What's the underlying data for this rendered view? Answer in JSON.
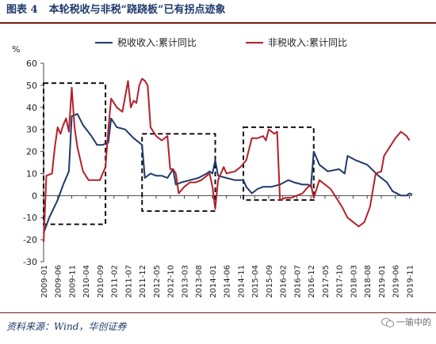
{
  "figure": {
    "label": "图表 4",
    "title": "本轮税收与非税“跷跷板”已有拐点迹象",
    "source": "资料来源：Wind，华创证券",
    "watermark": "一瑜中的"
  },
  "chart_data": {
    "type": "line",
    "ylabel": "%",
    "ylim": [
      -30,
      60
    ],
    "yticks": [
      -30,
      -20,
      -10,
      0,
      10,
      20,
      30,
      40,
      50,
      60
    ],
    "x_start": "2009-01",
    "x_end": "2019-12",
    "xticks": [
      "2009-01",
      "2009-06",
      "2009-11",
      "2010-04",
      "2010-09",
      "2011-02",
      "2011-07",
      "2011-12",
      "2012-05",
      "2012-10",
      "2013-03",
      "2013-08",
      "2014-01",
      "2014-06",
      "2014-11",
      "2015-04",
      "2015-09",
      "2016-02",
      "2016-07",
      "2016-12",
      "2017-05",
      "2017-10",
      "2018-03",
      "2018-08",
      "2019-01",
      "2019-06",
      "2019-11"
    ],
    "legend_position": "top",
    "grid": false,
    "series": [
      {
        "name": "税收收入:累计同比",
        "color": "#1f3a6b",
        "points": [
          [
            "2009-01",
            -17
          ],
          [
            "2009-03",
            -10
          ],
          [
            "2009-06",
            -2
          ],
          [
            "2009-08",
            5
          ],
          [
            "2009-10",
            11
          ],
          [
            "2009-11",
            36
          ],
          [
            "2010-01",
            37
          ],
          [
            "2010-03",
            32
          ],
          [
            "2010-06",
            27
          ],
          [
            "2010-08",
            23
          ],
          [
            "2010-10",
            23
          ],
          [
            "2010-12",
            24
          ],
          [
            "2011-01",
            35
          ],
          [
            "2011-03",
            31
          ],
          [
            "2011-06",
            30
          ],
          [
            "2011-09",
            26
          ],
          [
            "2011-12",
            23
          ],
          [
            "2012-01",
            8
          ],
          [
            "2012-03",
            10
          ],
          [
            "2012-05",
            9
          ],
          [
            "2012-07",
            9
          ],
          [
            "2012-09",
            8
          ],
          [
            "2012-11",
            12
          ],
          [
            "2012-12",
            5
          ],
          [
            "2013-02",
            6
          ],
          [
            "2013-05",
            7
          ],
          [
            "2013-08",
            8
          ],
          [
            "2013-11",
            10
          ],
          [
            "2013-12",
            11
          ],
          [
            "2014-01",
            10
          ],
          [
            "2014-02",
            16
          ],
          [
            "2014-03",
            9
          ],
          [
            "2014-06",
            8
          ],
          [
            "2014-09",
            7
          ],
          [
            "2014-12",
            7
          ],
          [
            "2015-01",
            4
          ],
          [
            "2015-03",
            1
          ],
          [
            "2015-05",
            3
          ],
          [
            "2015-07",
            4
          ],
          [
            "2015-10",
            4
          ],
          [
            "2016-01",
            5
          ],
          [
            "2016-04",
            7
          ],
          [
            "2016-06",
            6
          ],
          [
            "2016-09",
            5
          ],
          [
            "2016-11",
            5
          ],
          [
            "2016-12",
            4
          ],
          [
            "2017-01",
            20
          ],
          [
            "2017-03",
            14
          ],
          [
            "2017-06",
            11
          ],
          [
            "2017-10",
            12
          ],
          [
            "2017-12",
            10
          ],
          [
            "2018-01",
            18
          ],
          [
            "2018-04",
            16
          ],
          [
            "2018-08",
            14
          ],
          [
            "2018-12",
            9
          ],
          [
            "2019-03",
            6
          ],
          [
            "2019-05",
            2
          ],
          [
            "2019-08",
            0
          ],
          [
            "2019-10",
            0
          ],
          [
            "2019-11",
            1
          ],
          [
            "2019-12",
            0.5
          ]
        ]
      },
      {
        "name": "非税收入:累计同比",
        "color": "#b3202a",
        "points": [
          [
            "2009-01",
            -21
          ],
          [
            "2009-02",
            9
          ],
          [
            "2009-04",
            10
          ],
          [
            "2009-05",
            22
          ],
          [
            "2009-06",
            31
          ],
          [
            "2009-07",
            28
          ],
          [
            "2009-08",
            32
          ],
          [
            "2009-09",
            35
          ],
          [
            "2009-10",
            29
          ],
          [
            "2009-11",
            49
          ],
          [
            "2009-12",
            31
          ],
          [
            "2010-01",
            22
          ],
          [
            "2010-03",
            11
          ],
          [
            "2010-05",
            7
          ],
          [
            "2010-07",
            7
          ],
          [
            "2010-09",
            7
          ],
          [
            "2010-11",
            13
          ],
          [
            "2010-12",
            30
          ],
          [
            "2011-01",
            44
          ],
          [
            "2011-03",
            40
          ],
          [
            "2011-05",
            38
          ],
          [
            "2011-07",
            52
          ],
          [
            "2011-08",
            40
          ],
          [
            "2011-09",
            43
          ],
          [
            "2011-10",
            42
          ],
          [
            "2011-11",
            50
          ],
          [
            "2011-12",
            53
          ],
          [
            "2012-01",
            52
          ],
          [
            "2012-02",
            50
          ],
          [
            "2012-03",
            31
          ],
          [
            "2012-05",
            27
          ],
          [
            "2012-07",
            25
          ],
          [
            "2012-09",
            27
          ],
          [
            "2012-10",
            12
          ],
          [
            "2012-11",
            12
          ],
          [
            "2012-12",
            10
          ],
          [
            "2013-01",
            1
          ],
          [
            "2013-03",
            4
          ],
          [
            "2013-05",
            6
          ],
          [
            "2013-07",
            6
          ],
          [
            "2013-09",
            7
          ],
          [
            "2013-11",
            9
          ],
          [
            "2013-12",
            10
          ],
          [
            "2014-01",
            4
          ],
          [
            "2014-02",
            -6
          ],
          [
            "2014-03",
            7
          ],
          [
            "2014-05",
            13
          ],
          [
            "2014-06",
            10
          ],
          [
            "2014-09",
            11
          ],
          [
            "2014-11",
            13
          ],
          [
            "2015-01",
            16
          ],
          [
            "2015-03",
            26
          ],
          [
            "2015-05",
            26
          ],
          [
            "2015-07",
            27
          ],
          [
            "2015-08",
            25
          ],
          [
            "2015-09",
            30
          ],
          [
            "2015-11",
            28
          ],
          [
            "2015-12",
            29
          ],
          [
            "2016-01",
            -2
          ],
          [
            "2016-03",
            -1
          ],
          [
            "2016-05",
            -1
          ],
          [
            "2016-07",
            0
          ],
          [
            "2016-09",
            1
          ],
          [
            "2016-11",
            4
          ],
          [
            "2016-12",
            5
          ],
          [
            "2017-01",
            -1
          ],
          [
            "2017-03",
            7
          ],
          [
            "2017-05",
            5
          ],
          [
            "2017-07",
            3
          ],
          [
            "2017-09",
            -1
          ],
          [
            "2017-11",
            -5
          ],
          [
            "2018-01",
            -10
          ],
          [
            "2018-03",
            -12
          ],
          [
            "2018-05",
            -14
          ],
          [
            "2018-07",
            -12
          ],
          [
            "2018-09",
            -5
          ],
          [
            "2018-11",
            10
          ],
          [
            "2019-01",
            11
          ],
          [
            "2019-02",
            18
          ],
          [
            "2019-04",
            22
          ],
          [
            "2019-06",
            26
          ],
          [
            "2019-08",
            29
          ],
          [
            "2019-10",
            27
          ],
          [
            "2019-11",
            25
          ]
        ]
      }
    ],
    "highlight_boxes": [
      {
        "x": [
          "2009-01",
          "2010-11"
        ],
        "y": [
          -13,
          51
        ]
      },
      {
        "x": [
          "2011-12",
          "2014-02"
        ],
        "y": [
          -7,
          28
        ]
      },
      {
        "x": [
          "2014-12",
          "2017-01"
        ],
        "y": [
          -2,
          31
        ]
      }
    ]
  }
}
